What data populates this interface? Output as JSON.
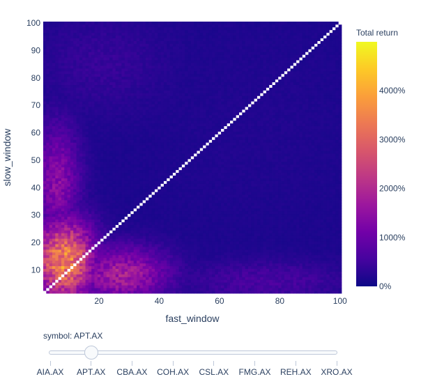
{
  "chart_data": {
    "type": "heatmap",
    "title": "",
    "xlabel": "fast_window",
    "ylabel": "slow_window",
    "xlim": [
      2,
      100
    ],
    "ylim": [
      2,
      100
    ],
    "x_ticks": [
      "20",
      "40",
      "60",
      "80",
      "100"
    ],
    "y_ticks": [
      "10",
      "20",
      "30",
      "40",
      "50",
      "60",
      "70",
      "80",
      "90",
      "100"
    ],
    "z_range": [
      0,
      5000
    ],
    "colorscale": "plasma",
    "colorbar": {
      "title": "Total return",
      "ticks": [
        "0%",
        "1000%",
        "2000%",
        "3000%",
        "4000%"
      ]
    },
    "diagonal_color": "#ffffff",
    "regions": [
      {
        "x_range": [
          2,
          15
        ],
        "y_range": [
          2,
          25
        ],
        "value": 3500
      },
      {
        "x_range": [
          2,
          10
        ],
        "y_range": [
          25,
          60
        ],
        "value": 1400
      },
      {
        "x_range": [
          15,
          40
        ],
        "y_range": [
          2,
          15
        ],
        "value": 1800
      },
      {
        "x_range": [
          50,
          100
        ],
        "y_range": [
          2,
          10
        ],
        "value": 600
      },
      {
        "x_range": [
          40,
          100
        ],
        "y_range": [
          30,
          100
        ],
        "value": 200
      },
      {
        "x_range": [
          2,
          40
        ],
        "y_range": [
          70,
          100
        ],
        "value": 400
      }
    ]
  },
  "slider": {
    "current_label": "symbol: APT.AX",
    "steps": [
      "AIA.AX",
      "APT.AX",
      "CBA.AX",
      "COH.AX",
      "CSL.AX",
      "FMG.AX",
      "REH.AX",
      "XRO.AX"
    ],
    "active_index": 1
  }
}
